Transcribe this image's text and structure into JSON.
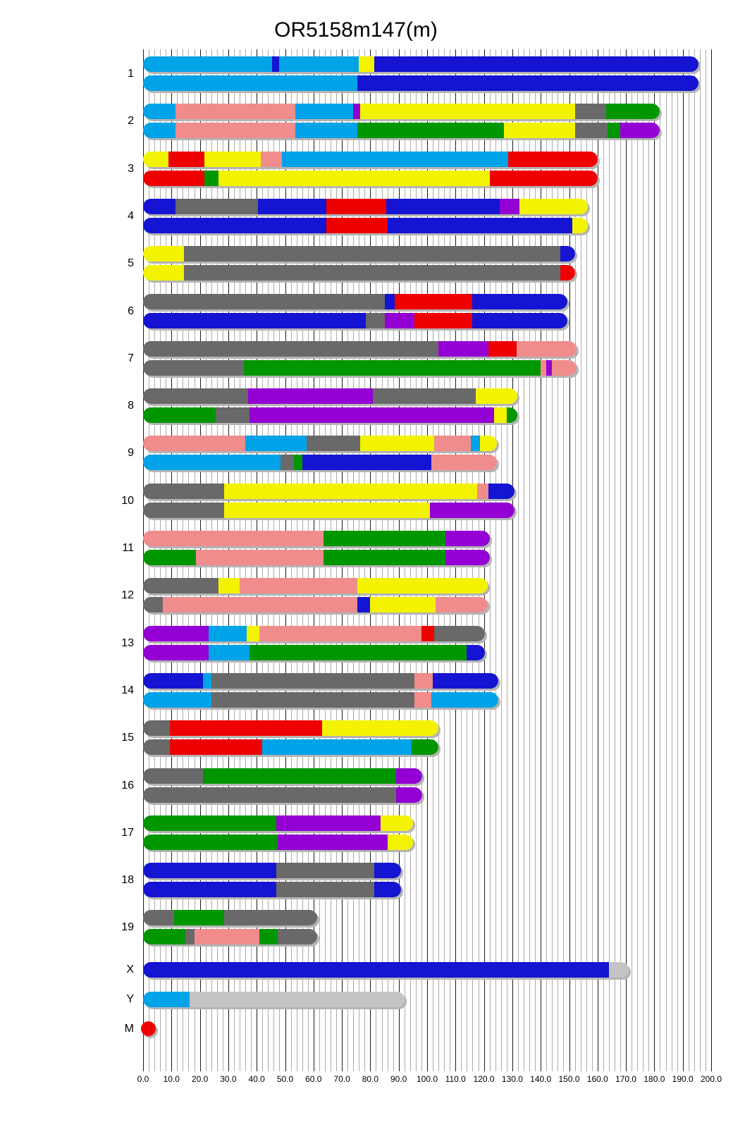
{
  "title": "OR5158m147(m)",
  "chart_data": {
    "type": "chromosome-ideogram",
    "title": "OR5158m147(m)",
    "axis": {
      "unit": "Mb",
      "min": 0,
      "max": 200,
      "major_step": 10,
      "minor_step": 2,
      "tick_labels": [
        "0.0",
        "10.0",
        "20.0",
        "30.0",
        "40.0",
        "50.0",
        "60.0",
        "70.0",
        "80.0",
        "90.0",
        "100.0",
        "110.0",
        "120.0",
        "130.0",
        "140.0",
        "150.0",
        "160.0",
        "170.0",
        "180.0",
        "190.0",
        "200.0"
      ]
    },
    "palette": {
      "lb": "#00A2E8",
      "b": "#1414D2",
      "y": "#F3F300",
      "p": "#F08C8C",
      "r": "#EE0000",
      "g": "#009600",
      "gy": "#696969",
      "pu": "#9400D3",
      "lgy": "#C4C4C4"
    },
    "palette_legend": {
      "lb": "light-blue",
      "b": "blue",
      "y": "yellow",
      "p": "pink",
      "r": "red",
      "g": "green",
      "gy": "gray",
      "pu": "purple",
      "lgy": "light-gray"
    },
    "chromosomes": [
      {
        "name": "1",
        "length": 195.5,
        "bars": [
          [
            [
              0,
              45.5,
              "lb"
            ],
            [
              45.5,
              48,
              "b"
            ],
            [
              48,
              76,
              "lb"
            ],
            [
              76,
              81.5,
              "y"
            ],
            [
              81.5,
              195.5,
              "b"
            ]
          ],
          [
            [
              0,
              75.5,
              "lb"
            ],
            [
              75.5,
              195.5,
              "b"
            ]
          ]
        ]
      },
      {
        "name": "2",
        "length": 182,
        "bars": [
          [
            [
              0,
              11.5,
              "lb"
            ],
            [
              11.5,
              53.5,
              "p"
            ],
            [
              53.5,
              74,
              "lb"
            ],
            [
              74,
              76.5,
              "pu"
            ],
            [
              76.5,
              152,
              "y"
            ],
            [
              152,
              163,
              "gy"
            ],
            [
              163,
              182,
              "g"
            ]
          ],
          [
            [
              0,
              11.5,
              "lb"
            ],
            [
              11.5,
              53.5,
              "p"
            ],
            [
              53.5,
              75.5,
              "lb"
            ],
            [
              75.5,
              127,
              "g"
            ],
            [
              127,
              152,
              "y"
            ],
            [
              152,
              163.5,
              "gy"
            ],
            [
              163.5,
              168,
              "g"
            ],
            [
              168,
              182,
              "pu"
            ]
          ]
        ]
      },
      {
        "name": "3",
        "length": 160,
        "bars": [
          [
            [
              0,
              9,
              "y"
            ],
            [
              9,
              21.5,
              "r"
            ],
            [
              21.5,
              41.5,
              "y"
            ],
            [
              41.5,
              49,
              "p"
            ],
            [
              49,
              128.5,
              "lb"
            ],
            [
              128.5,
              160,
              "r"
            ]
          ],
          [
            [
              0,
              21.5,
              "r"
            ],
            [
              21.5,
              26.5,
              "g"
            ],
            [
              26.5,
              122,
              "y"
            ],
            [
              122,
              160,
              "r"
            ]
          ]
        ]
      },
      {
        "name": "4",
        "length": 156.5,
        "bars": [
          [
            [
              0,
              11.5,
              "b"
            ],
            [
              11.5,
              40.5,
              "gy"
            ],
            [
              40.5,
              64.5,
              "b"
            ],
            [
              64.5,
              85.5,
              "r"
            ],
            [
              85.5,
              125.5,
              "b"
            ],
            [
              125.5,
              132.5,
              "pu"
            ],
            [
              132.5,
              156.5,
              "y"
            ]
          ],
          [
            [
              0,
              64.5,
              "b"
            ],
            [
              64.5,
              86,
              "r"
            ],
            [
              86,
              151,
              "b"
            ],
            [
              151,
              156.5,
              "y"
            ]
          ]
        ]
      },
      {
        "name": "5",
        "length": 152,
        "bars": [
          [
            [
              0,
              14.5,
              "y"
            ],
            [
              14.5,
              147,
              "gy"
            ],
            [
              147,
              152,
              "b"
            ]
          ],
          [
            [
              0,
              14.5,
              "y"
            ],
            [
              14.5,
              147,
              "gy"
            ],
            [
              147,
              152,
              "r"
            ]
          ]
        ]
      },
      {
        "name": "6",
        "length": 149.5,
        "bars": [
          [
            [
              0,
              85,
              "gy"
            ],
            [
              85,
              88.5,
              "b"
            ],
            [
              88.5,
              116,
              "r"
            ],
            [
              116,
              149.5,
              "b"
            ]
          ],
          [
            [
              0,
              78.5,
              "b"
            ],
            [
              78.5,
              85,
              "gy"
            ],
            [
              85,
              95.5,
              "pu"
            ],
            [
              95.5,
              116,
              "r"
            ],
            [
              116,
              149.5,
              "b"
            ]
          ]
        ]
      },
      {
        "name": "7",
        "length": 152.5,
        "bars": [
          [
            [
              0,
              104,
              "gy"
            ],
            [
              104,
              121.5,
              "pu"
            ],
            [
              121.5,
              131.5,
              "r"
            ],
            [
              131.5,
              152.5,
              "p"
            ]
          ],
          [
            [
              0,
              35.5,
              "gy"
            ],
            [
              35.5,
              140,
              "g"
            ],
            [
              140,
              142,
              "p"
            ],
            [
              142,
              144,
              "pu"
            ],
            [
              144,
              152.5,
              "p"
            ]
          ]
        ]
      },
      {
        "name": "8",
        "length": 131.7,
        "bars": [
          [
            [
              0,
              37,
              "gy"
            ],
            [
              37,
              81,
              "pu"
            ],
            [
              81,
              117,
              "gy"
            ],
            [
              117,
              131.7,
              "y"
            ]
          ],
          [
            [
              0,
              25.5,
              "g"
            ],
            [
              25.5,
              37.5,
              "gy"
            ],
            [
              37.5,
              123.5,
              "pu"
            ],
            [
              123.5,
              128,
              "y"
            ],
            [
              128,
              131.7,
              "g"
            ]
          ]
        ]
      },
      {
        "name": "9",
        "length": 124.5,
        "bars": [
          [
            [
              0,
              36,
              "p"
            ],
            [
              36,
              57.5,
              "lb"
            ],
            [
              57.5,
              76.5,
              "gy"
            ],
            [
              76.5,
              102.5,
              "y"
            ],
            [
              102.5,
              115.5,
              "p"
            ],
            [
              115.5,
              118.5,
              "lb"
            ],
            [
              118.5,
              124.5,
              "y"
            ]
          ],
          [
            [
              0,
              48.5,
              "lb"
            ],
            [
              48.5,
              53,
              "gy"
            ],
            [
              53,
              56,
              "g"
            ],
            [
              56,
              101.5,
              "b"
            ],
            [
              101.5,
              124.5,
              "p"
            ]
          ]
        ]
      },
      {
        "name": "10",
        "length": 130.7,
        "bars": [
          [
            [
              0,
              28.5,
              "gy"
            ],
            [
              28.5,
              117.5,
              "y"
            ],
            [
              117.5,
              121.5,
              "p"
            ],
            [
              121.5,
              130.7,
              "b"
            ]
          ],
          [
            [
              0,
              28.5,
              "gy"
            ],
            [
              28.5,
              101,
              "y"
            ],
            [
              101,
              130.7,
              "pu"
            ]
          ]
        ]
      },
      {
        "name": "11",
        "length": 122,
        "bars": [
          [
            [
              0,
              63.5,
              "p"
            ],
            [
              63.5,
              106.5,
              "g"
            ],
            [
              106.5,
              122,
              "pu"
            ]
          ],
          [
            [
              0,
              18.5,
              "g"
            ],
            [
              18.5,
              63.5,
              "p"
            ],
            [
              63.5,
              106.5,
              "g"
            ],
            [
              106.5,
              122,
              "pu"
            ]
          ]
        ]
      },
      {
        "name": "12",
        "length": 121.3,
        "bars": [
          [
            [
              0,
              26.5,
              "gy"
            ],
            [
              26.5,
              34,
              "y"
            ],
            [
              34,
              75.5,
              "p"
            ],
            [
              75.5,
              121.3,
              "y"
            ]
          ],
          [
            [
              0,
              7,
              "gy"
            ],
            [
              7,
              75.5,
              "p"
            ],
            [
              75.5,
              80,
              "b"
            ],
            [
              80,
              103,
              "y"
            ],
            [
              103,
              121.3,
              "p"
            ]
          ]
        ]
      },
      {
        "name": "13",
        "length": 120.4,
        "bars": [
          [
            [
              0,
              23,
              "pu"
            ],
            [
              23,
              36.5,
              "lb"
            ],
            [
              36.5,
              41,
              "y"
            ],
            [
              41,
              98,
              "p"
            ],
            [
              98,
              102.5,
              "r"
            ],
            [
              102.5,
              120.4,
              "gy"
            ]
          ],
          [
            [
              0,
              23,
              "pu"
            ],
            [
              23,
              37.5,
              "lb"
            ],
            [
              37.5,
              114,
              "g"
            ],
            [
              114,
              120.4,
              "b"
            ]
          ]
        ]
      },
      {
        "name": "14",
        "length": 125,
        "bars": [
          [
            [
              0,
              21,
              "b"
            ],
            [
              21,
              24,
              "lb"
            ],
            [
              24,
              95.5,
              "gy"
            ],
            [
              95.5,
              102,
              "p"
            ],
            [
              102,
              125,
              "b"
            ]
          ],
          [
            [
              0,
              24,
              "lb"
            ],
            [
              24,
              95.5,
              "gy"
            ],
            [
              95.5,
              101.5,
              "p"
            ],
            [
              101.5,
              125,
              "lb"
            ]
          ]
        ]
      },
      {
        "name": "15",
        "length": 104,
        "bars": [
          [
            [
              0,
              9.5,
              "gy"
            ],
            [
              9.5,
              63,
              "r"
            ],
            [
              63,
              104,
              "y"
            ]
          ],
          [
            [
              0,
              9.5,
              "gy"
            ],
            [
              9.5,
              42,
              "r"
            ],
            [
              42,
              94.5,
              "lb"
            ],
            [
              94.5,
              104,
              "g"
            ]
          ]
        ]
      },
      {
        "name": "16",
        "length": 98.3,
        "bars": [
          [
            [
              0,
              21,
              "gy"
            ],
            [
              21,
              89,
              "g"
            ],
            [
              89,
              98.3,
              "pu"
            ]
          ],
          [
            [
              0,
              89,
              "gy"
            ],
            [
              89,
              98.3,
              "pu"
            ]
          ]
        ]
      },
      {
        "name": "17",
        "length": 95,
        "bars": [
          [
            [
              0,
              47,
              "g"
            ],
            [
              47,
              83.5,
              "pu"
            ],
            [
              83.5,
              95,
              "y"
            ]
          ],
          [
            [
              0,
              47.5,
              "g"
            ],
            [
              47.5,
              86,
              "pu"
            ],
            [
              86,
              95,
              "y"
            ]
          ]
        ]
      },
      {
        "name": "18",
        "length": 90.8,
        "bars": [
          [
            [
              0,
              47,
              "b"
            ],
            [
              47,
              81.5,
              "gy"
            ],
            [
              81.5,
              90.8,
              "b"
            ]
          ],
          [
            [
              0,
              47,
              "b"
            ],
            [
              47,
              81.5,
              "gy"
            ],
            [
              81.5,
              90.8,
              "b"
            ]
          ]
        ]
      },
      {
        "name": "19",
        "length": 61.3,
        "bars": [
          [
            [
              0,
              11,
              "gy"
            ],
            [
              11,
              28.5,
              "g"
            ],
            [
              28.5,
              61.3,
              "gy"
            ]
          ],
          [
            [
              0,
              15,
              "g"
            ],
            [
              15,
              18,
              "gy"
            ],
            [
              18,
              41,
              "p"
            ],
            [
              41,
              47.5,
              "g"
            ],
            [
              47.5,
              61.3,
              "gy"
            ]
          ]
        ]
      },
      {
        "name": "X",
        "length": 171,
        "bars": [
          [
            [
              0,
              164,
              "b"
            ],
            [
              164,
              171,
              "lgy"
            ]
          ]
        ]
      },
      {
        "name": "Y",
        "length": 92,
        "bars": [
          [
            [
              0,
              16.5,
              "lb"
            ],
            [
              16.5,
              92,
              "lgy"
            ]
          ]
        ]
      },
      {
        "name": "M",
        "length": 2.5,
        "shape": "dot",
        "bars": [
          [
            [
              0,
              2.5,
              "r"
            ]
          ]
        ]
      }
    ]
  }
}
